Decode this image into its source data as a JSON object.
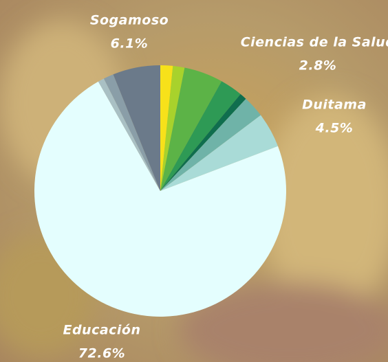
{
  "chart_data": {
    "type": "pie",
    "categories": [
      null,
      null,
      null,
      null,
      null,
      "Ciencias de la Salud",
      "Duitama",
      "Educación",
      null,
      null,
      "Sogamoso"
    ],
    "values": [
      1.6,
      1.5,
      5.0,
      2.9,
      0.9,
      2.8,
      4.5,
      72.6,
      0.8,
      1.3,
      6.1
    ],
    "value_labels": [
      null,
      null,
      null,
      null,
      null,
      "2.8%",
      "4.5%",
      "72.6%",
      null,
      null,
      "6.1%"
    ],
    "colors": [
      "#f7e11a",
      "#a8d22c",
      "#5cb347",
      "#2e9a55",
      "#0f6e4e",
      "#6fb3a8",
      "#a9dbd7",
      "#e4fefe",
      "#a9c0c4",
      "#8a9ea8",
      "#6b7a8a"
    ]
  }
}
